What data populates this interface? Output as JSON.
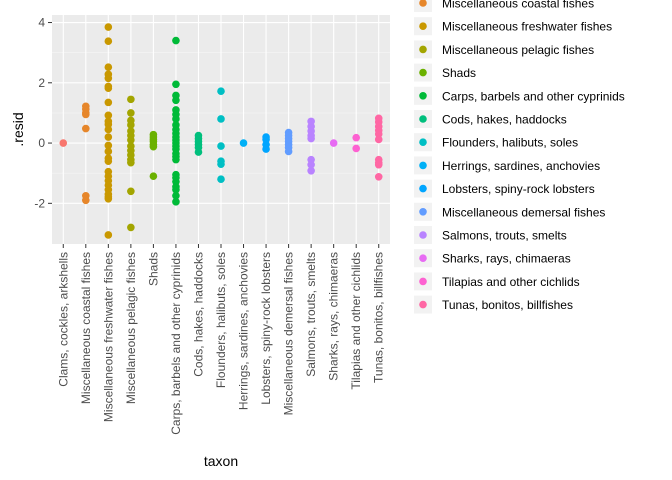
{
  "chart_data": {
    "type": "scatter",
    "xlabel": "taxon",
    "ylabel": ".resid",
    "ylim": [
      -3.35,
      4.25
    ],
    "yticks": [
      -2,
      0,
      2,
      4
    ],
    "grid": true,
    "legend_position": "right",
    "categories": [
      "Clams, cockles, arkshells",
      "Miscellaneous coastal fishes",
      "Miscellaneous freshwater fishes",
      "Miscellaneous pelagic fishes",
      "Shads",
      "Carps, barbels and other cyprinids",
      "Cods, hakes, haddocks",
      "Flounders, halibuts, soles",
      "Herrings, sardines, anchovies",
      "Lobsters, spiny-rock lobsters",
      "Miscellaneous demersal fishes",
      "Salmons, trouts, smelts",
      "Sharks, rays, chimaeras",
      "Tilapias and other cichlids",
      "Tunas, bonitos, billfishes"
    ],
    "colors": [
      "#F8766D",
      "#E6862A",
      "#C99800",
      "#A3A500",
      "#6BB100",
      "#00BA38",
      "#00BF7D",
      "#00BFC4",
      "#00B0F6",
      "#00A5FF",
      "#619CFF",
      "#B983FF",
      "#E76BF3",
      "#FD61D1",
      "#FF67A4"
    ],
    "points": [
      [
        0.0
      ],
      [
        1.22,
        1.12,
        1.0,
        0.95,
        0.48,
        -1.75,
        -1.9
      ],
      [
        3.85,
        3.38,
        2.52,
        2.28,
        2.15,
        1.88,
        1.82,
        1.35,
        0.92,
        0.72,
        0.62,
        0.45,
        0.2,
        -0.08,
        -0.28,
        -0.5,
        -0.6,
        -0.95,
        -1.1,
        -1.25,
        -1.4,
        -1.55,
        -1.7,
        -1.78,
        -1.85,
        -3.05
      ],
      [
        1.45,
        1.0,
        0.75,
        0.6,
        0.4,
        0.25,
        0.1,
        -0.1,
        -0.25,
        -0.4,
        -0.55,
        -0.65,
        -1.6,
        -2.8
      ],
      [
        0.28,
        0.2,
        0.12,
        0.05,
        -0.05,
        -0.12,
        -1.1
      ],
      [
        3.4,
        1.95,
        1.58,
        1.42,
        1.1,
        0.95,
        0.8,
        0.6,
        0.45,
        0.32,
        0.2,
        0.1,
        0.0,
        -0.1,
        -0.2,
        -0.35,
        -0.45,
        -0.55,
        -1.05,
        -1.15,
        -1.28,
        -1.45,
        -1.55,
        -1.75,
        -1.95
      ],
      [
        0.25,
        0.15,
        0.05,
        -0.05,
        -0.15,
        -0.3
      ],
      [
        1.72,
        0.8,
        -0.1,
        -0.6,
        -0.7,
        -1.2
      ],
      [
        0.0
      ],
      [
        0.2,
        0.12,
        -0.05,
        -0.2
      ],
      [
        0.35,
        0.25,
        0.15,
        0.05,
        -0.05,
        -0.15,
        -0.28
      ],
      [
        0.72,
        0.55,
        0.4,
        0.25,
        0.15,
        -0.55,
        -0.72,
        -0.92
      ],
      [
        0.0
      ],
      [
        0.18,
        -0.18
      ],
      [
        0.82,
        0.7,
        0.55,
        0.42,
        0.3,
        0.12,
        -0.55,
        -0.65,
        -0.72,
        -1.12
      ]
    ]
  }
}
